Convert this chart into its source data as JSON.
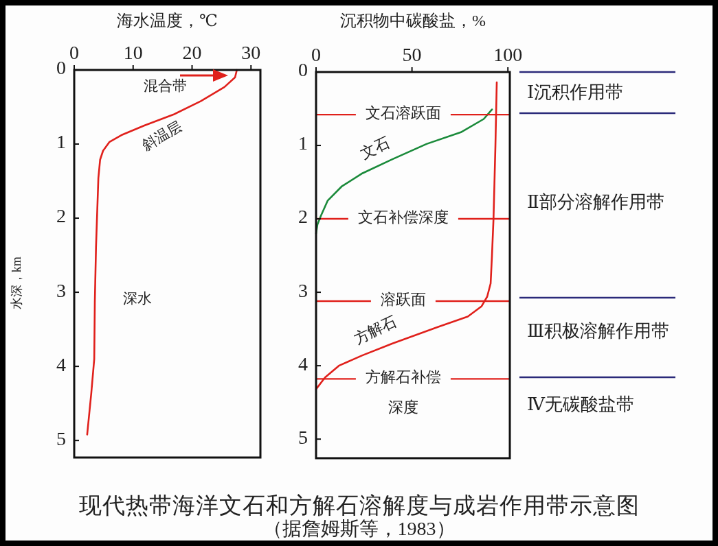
{
  "chart_data": [
    {
      "type": "line",
      "xlabel": "海水温度，℃",
      "ylabel": "水深，km",
      "xlim": [
        0,
        31.6
      ],
      "ylim": [
        5.23,
        0
      ],
      "xticks": [
        0,
        10,
        20,
        30
      ],
      "yticks": [
        0,
        1,
        2,
        3,
        4,
        5
      ],
      "series": [
        {
          "color": "#e0201b",
          "x": [
            27.6,
            27.3,
            25.5,
            21.5,
            16.9,
            11.9,
            8.0,
            6.0,
            4.9,
            4.4,
            4.1,
            3.7,
            3.5,
            3.4,
            2.9,
            2.2
          ],
          "values": [
            0,
            0.1,
            0.23,
            0.42,
            0.6,
            0.75,
            0.88,
            0.97,
            1.09,
            1.21,
            1.46,
            2.39,
            3.13,
            3.9,
            4.36,
            4.92
          ]
        }
      ],
      "annotations": [
        "混合带",
        "斜温层",
        "深水"
      ]
    },
    {
      "type": "line",
      "title": "现代热带海洋文石和方解石溶解度与成岩作用带示意图",
      "subtitle": "（据詹姆斯等，1983）",
      "xlabel": "沉积物中碳酸盐，%",
      "xlim": [
        0,
        101
      ],
      "ylim": [
        5.26,
        0
      ],
      "xticks": [
        0,
        50,
        100
      ],
      "yticks": [
        0,
        1,
        2,
        3,
        4,
        5
      ],
      "series": [
        {
          "name": "文石",
          "color": "#1a8a3a",
          "x": [
            91.7,
            87.4,
            75.5,
            57.6,
            39.6,
            24.1,
            13.3,
            6.1,
            2.5,
            0.7,
            0
          ],
          "values": [
            0.51,
            0.64,
            0.82,
            0.98,
            1.19,
            1.38,
            1.56,
            1.75,
            1.96,
            2.08,
            2.2
          ]
        },
        {
          "name": "方解石",
          "color": "#e0201b",
          "x": [
            94.2,
            93.5,
            92.5,
            91.7,
            91.0,
            89.2,
            86.3,
            79.1,
            63.7,
            39.6,
            24.1,
            11.9,
            4.7,
            0
          ],
          "values": [
            0.14,
            1.0,
            2.0,
            2.5,
            2.88,
            3.06,
            3.19,
            3.33,
            3.47,
            3.7,
            3.86,
            4.0,
            4.16,
            4.32
          ]
        }
      ],
      "ref_lines": [
        {
          "axis": "y",
          "value": 0.58,
          "label": "文石溶跃面",
          "color": "#e0201b"
        },
        {
          "axis": "y",
          "value": 2.0,
          "label": "文石补偿深度",
          "color": "#e0201b"
        },
        {
          "axis": "y",
          "value": 3.12,
          "label": "溶跃面",
          "color": "#e0201b"
        },
        {
          "axis": "y",
          "value": 4.18,
          "label": "方解石补偿深度",
          "color": "#e0201b"
        }
      ],
      "annotations": [
        "Ⅰ沉积作用带",
        "Ⅱ部分溶解作用带",
        "Ⅲ积极溶解作用带",
        "Ⅳ无碳酸盐带"
      ]
    }
  ]
}
